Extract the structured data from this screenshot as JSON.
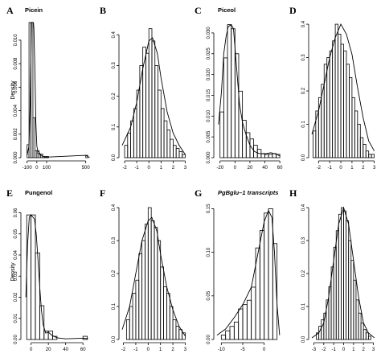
{
  "chart_data": [
    {
      "letter": "A",
      "title": "Picein",
      "title_italic": false,
      "ylabel": "Density",
      "type": "bar",
      "xlim": [
        -130,
        560
      ],
      "ylim": [
        0,
        0.0115
      ],
      "xticks": [
        {
          "v": -100,
          "label": "-100"
        },
        {
          "v": 0,
          "label": "0"
        },
        {
          "v": 100,
          "label": "100"
        },
        {
          "v": 500,
          "label": "500"
        }
      ],
      "yticks": [
        {
          "v": 0,
          "label": "0.000"
        },
        {
          "v": 0.002,
          "label": "0.002"
        },
        {
          "v": 0.004,
          "label": "0.004"
        },
        {
          "v": 0.006,
          "label": "0.006"
        },
        {
          "v": 0.008,
          "label": "0.008"
        },
        {
          "v": 0.01,
          "label": "0.010"
        }
      ],
      "bins": {
        "start": -100,
        "width": 20,
        "values": [
          0.0011,
          0.0115,
          0.0115,
          0.0034,
          0.0006,
          0.0004,
          0.0003,
          0.0003,
          0.0001,
          0.0001,
          0.0001
        ]
      },
      "extra_bins": [
        {
          "x0": 500,
          "x1": 520,
          "y": 0.0002
        }
      ],
      "curve": [
        [
          -100,
          0.0002
        ],
        [
          -80,
          0.001
        ],
        [
          -70,
          0.004
        ],
        [
          -60,
          0.0085
        ],
        [
          -55,
          0.0115
        ],
        [
          -45,
          0.0115
        ],
        [
          -35,
          0.0115
        ],
        [
          -30,
          0.011
        ],
        [
          -20,
          0.0075
        ],
        [
          -10,
          0.003
        ],
        [
          0,
          0.001
        ],
        [
          10,
          0.0005
        ],
        [
          20,
          0.0006
        ],
        [
          30,
          0.0003
        ],
        [
          40,
          0.0002
        ],
        [
          50,
          0.0002
        ],
        [
          60,
          0.0001
        ],
        [
          100,
          5e-05
        ],
        [
          500,
          0.0002
        ],
        [
          520,
          0.0001
        ],
        [
          540,
          0
        ]
      ]
    },
    {
      "letter": "B",
      "title": "",
      "title_italic": false,
      "ylabel": "",
      "type": "bar",
      "xlim": [
        -2.2,
        3.1
      ],
      "ylim": [
        0,
        0.44
      ],
      "xticks": [
        {
          "v": -2,
          "label": "-2"
        },
        {
          "v": -1,
          "label": "-1"
        },
        {
          "v": 0,
          "label": "0"
        },
        {
          "v": 1,
          "label": "1"
        },
        {
          "v": 2,
          "label": "2"
        },
        {
          "v": 3,
          "label": "3"
        }
      ],
      "yticks": [
        {
          "v": 0,
          "label": "0.0"
        },
        {
          "v": 0.1,
          "label": "0.1"
        },
        {
          "v": 0.2,
          "label": "0.2"
        },
        {
          "v": 0.3,
          "label": "0.3"
        },
        {
          "v": 0.4,
          "label": "0.4"
        }
      ],
      "bins": {
        "start": -2,
        "width": 0.25,
        "values": [
          0.04,
          0.08,
          0.12,
          0.16,
          0.22,
          0.3,
          0.36,
          0.34,
          0.42,
          0.38,
          0.3,
          0.22,
          0.16,
          0.12,
          0.09,
          0.06,
          0.04,
          0.03,
          0.02,
          0.01
        ]
      },
      "curve": [
        [
          -2.2,
          0.04
        ],
        [
          -1.5,
          0.1
        ],
        [
          -1,
          0.18
        ],
        [
          -0.5,
          0.29
        ],
        [
          0,
          0.38
        ],
        [
          0.3,
          0.39
        ],
        [
          0.7,
          0.34
        ],
        [
          1,
          0.26
        ],
        [
          1.5,
          0.15
        ],
        [
          2,
          0.08
        ],
        [
          2.5,
          0.04
        ],
        [
          3,
          0.01
        ]
      ]
    },
    {
      "letter": "C",
      "title": "Piceol",
      "title_italic": false,
      "ylabel": "",
      "type": "bar",
      "xlim": [
        -24,
        62
      ],
      "ylim": [
        0,
        0.0325
      ],
      "xticks": [
        {
          "v": -20,
          "label": "-20"
        },
        {
          "v": 0,
          "label": "0"
        },
        {
          "v": 20,
          "label": "20"
        },
        {
          "v": 40,
          "label": "40"
        },
        {
          "v": 60,
          "label": "60"
        }
      ],
      "yticks": [
        {
          "v": 0,
          "label": "0.000"
        },
        {
          "v": 0.005,
          "label": "0.005"
        },
        {
          "v": 0.01,
          "label": "0.010"
        },
        {
          "v": 0.015,
          "label": "0.015"
        },
        {
          "v": 0.02,
          "label": "0.020"
        },
        {
          "v": 0.025,
          "label": "0.025"
        },
        {
          "v": 0.03,
          "label": "0.030"
        }
      ],
      "bins": {
        "start": -20,
        "width": 5,
        "values": [
          0.011,
          0.024,
          0.032,
          0.031,
          0.025,
          0.016,
          0.009,
          0.006,
          0.0045,
          0.003,
          0.002,
          0.001,
          0.0008,
          0.0008,
          0.001,
          0.0008
        ]
      },
      "curve": [
        [
          -22,
          0.008
        ],
        [
          -18,
          0.016
        ],
        [
          -15,
          0.025
        ],
        [
          -12,
          0.029
        ],
        [
          -9,
          0.0315
        ],
        [
          -5,
          0.032
        ],
        [
          -2,
          0.031
        ],
        [
          2,
          0.022
        ],
        [
          6,
          0.013
        ],
        [
          10,
          0.0085
        ],
        [
          14,
          0.006
        ],
        [
          20,
          0.003
        ],
        [
          26,
          0.0015
        ],
        [
          32,
          0.001
        ],
        [
          40,
          0.0009
        ],
        [
          48,
          0.0012
        ],
        [
          56,
          0.0008
        ],
        [
          60,
          0.0004
        ]
      ]
    },
    {
      "letter": "D",
      "title": "",
      "title_italic": false,
      "ylabel": "",
      "type": "bar",
      "xlim": [
        -2.6,
        3.1
      ],
      "ylim": [
        0,
        0.405
      ],
      "xticks": [
        {
          "v": -2,
          "label": "-2"
        },
        {
          "v": -1,
          "label": "-1"
        },
        {
          "v": 0,
          "label": "0"
        },
        {
          "v": 1,
          "label": "1"
        },
        {
          "v": 2,
          "label": "2"
        },
        {
          "v": 3,
          "label": "3"
        }
      ],
      "yticks": [
        {
          "v": 0,
          "label": "0.0"
        },
        {
          "v": 0.1,
          "label": "0.1"
        },
        {
          "v": 0.2,
          "label": "0.2"
        },
        {
          "v": 0.3,
          "label": "0.3"
        },
        {
          "v": 0.4,
          "label": "0.4"
        }
      ],
      "bins": {
        "start": -2.5,
        "width": 0.25,
        "values": [
          0.08,
          0.14,
          0.18,
          0.22,
          0.28,
          0.3,
          0.32,
          0.35,
          0.4,
          0.37,
          0.34,
          0.32,
          0.28,
          0.24,
          0.18,
          0.14,
          0.1,
          0.06,
          0.04,
          0.02,
          0.01,
          0.01
        ]
      },
      "curve": [
        [
          -2.6,
          0.07
        ],
        [
          -2,
          0.14
        ],
        [
          -1.5,
          0.22
        ],
        [
          -1,
          0.3
        ],
        [
          -0.5,
          0.36
        ],
        [
          0,
          0.4
        ],
        [
          0.5,
          0.37
        ],
        [
          1,
          0.31
        ],
        [
          1.5,
          0.21
        ],
        [
          2,
          0.12
        ],
        [
          2.5,
          0.05
        ],
        [
          3,
          0.02
        ]
      ]
    },
    {
      "letter": "E",
      "title": "Pungenol",
      "title_italic": false,
      "ylabel": "Density",
      "type": "bar",
      "xlim": [
        -8,
        70
      ],
      "ylim": [
        0,
        0.064
      ],
      "xticks": [
        {
          "v": 0,
          "label": "0"
        },
        {
          "v": 20,
          "label": "20"
        },
        {
          "v": 40,
          "label": "40"
        },
        {
          "v": 60,
          "label": "60"
        }
      ],
      "yticks": [
        {
          "v": 0,
          "label": "0.00"
        },
        {
          "v": 0.01,
          "label": "0.01"
        },
        {
          "v": 0.02,
          "label": "0.02"
        },
        {
          "v": 0.03,
          "label": "0.03"
        },
        {
          "v": 0.04,
          "label": "0.04"
        },
        {
          "v": 0.05,
          "label": "0.05"
        },
        {
          "v": 0.06,
          "label": "0.06"
        }
      ],
      "bins": {
        "start": -5,
        "width": 5,
        "values": [
          0.059,
          0.059,
          0.041,
          0.016,
          0.004,
          0.004,
          0.0015
        ]
      },
      "extra_bins": [
        {
          "x0": 60,
          "x1": 65,
          "y": 0.0015
        }
      ],
      "curve": [
        [
          -6,
          0.02
        ],
        [
          -4,
          0.045
        ],
        [
          -2,
          0.058
        ],
        [
          0,
          0.059
        ],
        [
          2,
          0.058
        ],
        [
          4,
          0.057
        ],
        [
          6,
          0.05
        ],
        [
          8,
          0.038
        ],
        [
          10,
          0.025
        ],
        [
          12,
          0.014
        ],
        [
          14,
          0.007
        ],
        [
          17,
          0.003
        ],
        [
          20,
          0.0035
        ],
        [
          24,
          0.002
        ],
        [
          30,
          0.0008
        ],
        [
          40,
          0.0003
        ],
        [
          60,
          0.0006
        ],
        [
          66,
          0.0004
        ]
      ]
    },
    {
      "letter": "F",
      "title": "",
      "title_italic": false,
      "ylabel": "",
      "type": "bar",
      "xlim": [
        -2.1,
        3.1
      ],
      "ylim": [
        0,
        0.41
      ],
      "xticks": [
        {
          "v": -2,
          "label": "-2"
        },
        {
          "v": -1,
          "label": "-1"
        },
        {
          "v": 0,
          "label": "0"
        },
        {
          "v": 1,
          "label": "1"
        },
        {
          "v": 2,
          "label": "2"
        },
        {
          "v": 3,
          "label": "3"
        }
      ],
      "yticks": [
        {
          "v": 0,
          "label": "0.0"
        },
        {
          "v": 0.1,
          "label": "0.1"
        },
        {
          "v": 0.2,
          "label": "0.2"
        },
        {
          "v": 0.3,
          "label": "0.3"
        },
        {
          "v": 0.4,
          "label": "0.4"
        }
      ],
      "bins": {
        "start": -1.75,
        "width": 0.25,
        "values": [
          0.06,
          0.1,
          0.14,
          0.18,
          0.26,
          0.3,
          0.35,
          0.4,
          0.36,
          0.34,
          0.3,
          0.22,
          0.16,
          0.14,
          0.1,
          0.06,
          0.04,
          0.03,
          0.02
        ]
      },
      "curve": [
        [
          -2.1,
          0.03
        ],
        [
          -1.5,
          0.1
        ],
        [
          -1,
          0.2
        ],
        [
          -0.5,
          0.3
        ],
        [
          0,
          0.36
        ],
        [
          0.3,
          0.37
        ],
        [
          0.7,
          0.33
        ],
        [
          1,
          0.26
        ],
        [
          1.5,
          0.16
        ],
        [
          2,
          0.09
        ],
        [
          2.5,
          0.04
        ],
        [
          3,
          0.01
        ]
      ]
    },
    {
      "letter": "G",
      "title": "PgBglu–1 transcripts",
      "title_italic": true,
      "ylabel": "",
      "type": "bar",
      "xlim": [
        -11,
        4
      ],
      "ylim": [
        0,
        0.155
      ],
      "xticks": [
        {
          "v": -10,
          "label": "-10"
        },
        {
          "v": -5,
          "label": "-5"
        },
        {
          "v": 0,
          "label": "0"
        }
      ],
      "yticks": [
        {
          "v": 0,
          "label": "0.00"
        },
        {
          "v": 0.05,
          "label": "0.05"
        },
        {
          "v": 0.1,
          "label": "0.10"
        },
        {
          "v": 0.15,
          "label": "0.15"
        }
      ],
      "bins": {
        "start": -10,
        "width": 1,
        "values": [
          0.005,
          0.01,
          0.015,
          0.02,
          0.035,
          0.04,
          0.045,
          0.06,
          0.105,
          0.125,
          0.145,
          0.15,
          0.11
        ]
      },
      "curve": [
        [
          -11,
          0.005
        ],
        [
          -9,
          0.012
        ],
        [
          -7,
          0.025
        ],
        [
          -5,
          0.04
        ],
        [
          -3,
          0.06
        ],
        [
          -2,
          0.085
        ],
        [
          -1,
          0.11
        ],
        [
          0,
          0.135
        ],
        [
          1,
          0.148
        ],
        [
          1.8,
          0.14
        ],
        [
          2.4,
          0.1
        ],
        [
          3,
          0.04
        ],
        [
          3.6,
          0.005
        ]
      ]
    },
    {
      "letter": "H",
      "title": "",
      "title_italic": false,
      "ylabel": "",
      "type": "bar",
      "xlim": [
        -3.2,
        3.2
      ],
      "ylim": [
        0,
        0.41
      ],
      "xticks": [
        {
          "v": -3,
          "label": "-3"
        },
        {
          "v": -2,
          "label": "-2"
        },
        {
          "v": -1,
          "label": "-1"
        },
        {
          "v": 0,
          "label": "0"
        },
        {
          "v": 1,
          "label": "1"
        },
        {
          "v": 2,
          "label": "2"
        },
        {
          "v": 3,
          "label": "3"
        }
      ],
      "yticks": [
        {
          "v": 0,
          "label": "0.0"
        },
        {
          "v": 0.1,
          "label": "0.1"
        },
        {
          "v": 0.2,
          "label": "0.2"
        },
        {
          "v": 0.3,
          "label": "0.3"
        },
        {
          "v": 0.4,
          "label": "0.4"
        }
      ],
      "bins": {
        "start": -2.75,
        "width": 0.25,
        "values": [
          0.02,
          0.04,
          0.06,
          0.08,
          0.12,
          0.16,
          0.22,
          0.28,
          0.33,
          0.38,
          0.4,
          0.39,
          0.36,
          0.3,
          0.24,
          0.18,
          0.12,
          0.08,
          0.05,
          0.03,
          0.02,
          0.01
        ]
      },
      "curve": [
        [
          -3.2,
          0.005
        ],
        [
          -2.5,
          0.02
        ],
        [
          -2,
          0.05
        ],
        [
          -1.5,
          0.13
        ],
        [
          -1,
          0.24
        ],
        [
          -0.5,
          0.35
        ],
        [
          0,
          0.4
        ],
        [
          0.5,
          0.35
        ],
        [
          1,
          0.24
        ],
        [
          1.5,
          0.13
        ],
        [
          2,
          0.05
        ],
        [
          2.5,
          0.02
        ],
        [
          3.1,
          0.005
        ]
      ]
    }
  ]
}
